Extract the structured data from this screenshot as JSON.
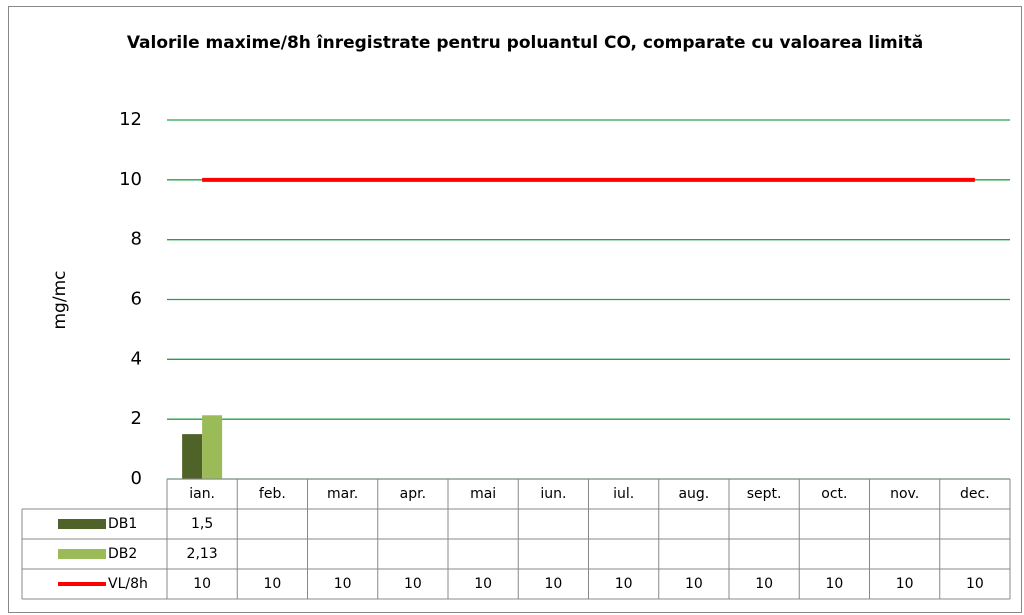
{
  "chart_data": {
    "type": "bar",
    "title": "Valorile maxime/8h înregistrate pentru poluantul CO, comparate cu valoarea limită",
    "y_label": "mg/mc",
    "categories": [
      "ian.",
      "feb.",
      "mar.",
      "apr.",
      "mai",
      "iun.",
      "iul.",
      "aug.",
      "sept.",
      "oct.",
      "nov.",
      "dec."
    ],
    "series": [
      {
        "name": "DB1",
        "type": "bar",
        "color": "#4f6228",
        "values": [
          1.5,
          null,
          null,
          null,
          null,
          null,
          null,
          null,
          null,
          null,
          null,
          null
        ],
        "value_labels": [
          "1,5",
          null,
          null,
          null,
          null,
          null,
          null,
          null,
          null,
          null,
          null,
          null
        ]
      },
      {
        "name": "DB2",
        "type": "bar",
        "color": "#9bbb59",
        "values": [
          2.13,
          null,
          null,
          null,
          null,
          null,
          null,
          null,
          null,
          null,
          null,
          null
        ],
        "value_labels": [
          "2,13",
          null,
          null,
          null,
          null,
          null,
          null,
          null,
          null,
          null,
          null,
          null
        ]
      },
      {
        "name": "VL/8h",
        "type": "line",
        "color": "#ff0000",
        "values": [
          10,
          10,
          10,
          10,
          10,
          10,
          10,
          10,
          10,
          10,
          10,
          10
        ]
      }
    ],
    "ylim": [
      0,
      12
    ],
    "yticks": [
      0,
      2,
      4,
      6,
      8,
      10,
      12
    ],
    "grid": true,
    "grid_color": "#1fa34a"
  }
}
